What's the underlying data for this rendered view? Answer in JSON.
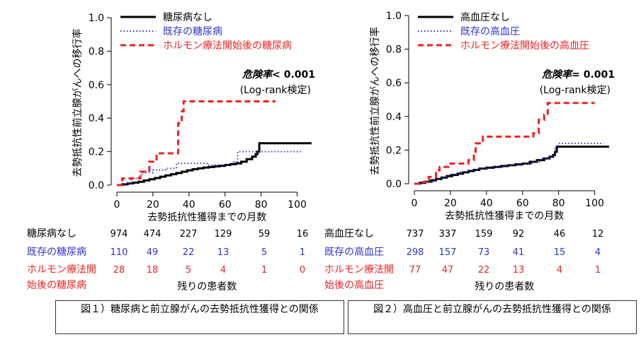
{
  "figures": [
    {
      "id": "fig1",
      "caption": "図１）糖尿病と前立腺がんの去勢抵抗性獲得との関係",
      "risk_table_title": "残りの患者数",
      "annotation": {
        "label": "危険率",
        "value": "< 0.001",
        "test": "(Log-rank検定)"
      },
      "colors": {
        "series0": "#000000",
        "series1": "#3333cc",
        "series2": "#ee2222"
      },
      "chart_data": {
        "type": "line",
        "title": "",
        "xlabel": "去勢抵抗性獲得までの月数",
        "ylabel": "去勢抵抗性前立腺がんへの移行率",
        "xlim": [
          0,
          110
        ],
        "ylim": [
          0,
          1.0
        ],
        "xticks": [
          0,
          20,
          40,
          60,
          80,
          100
        ],
        "yticks": [
          0.0,
          0.2,
          0.4,
          0.6,
          0.8,
          1.0
        ],
        "grid": false,
        "legend_position": "top-left",
        "series": [
          {
            "name": "糖尿病なし",
            "style": "solid",
            "x": [
              0,
              3,
              6,
              9,
              12,
              15,
              18,
              21,
              24,
              27,
              30,
              33,
              36,
              39,
              42,
              45,
              48,
              51,
              54,
              57,
              60,
              63,
              66,
              69,
              72,
              75,
              77,
              78,
              79,
              108
            ],
            "y": [
              0,
              0.005,
              0.01,
              0.015,
              0.02,
              0.028,
              0.035,
              0.042,
              0.05,
              0.058,
              0.065,
              0.072,
              0.08,
              0.088,
              0.095,
              0.1,
              0.105,
              0.108,
              0.112,
              0.115,
              0.12,
              0.125,
              0.13,
              0.14,
              0.155,
              0.17,
              0.185,
              0.2,
              0.25,
              0.25
            ]
          },
          {
            "name": "既存の糖尿病",
            "style": "dotted",
            "x": [
              0,
              5,
              8,
              12,
              14,
              20,
              24,
              27,
              33,
              37,
              45,
              50,
              60,
              64,
              67,
              80,
              83,
              103
            ],
            "y": [
              0,
              0.01,
              0.04,
              0.05,
              0.075,
              0.09,
              0.09,
              0.1,
              0.13,
              0.13,
              0.13,
              0.12,
              0.12,
              0.14,
              0.2,
              0.2,
              0.2,
              0.2
            ]
          },
          {
            "name": "ホルモン療法開始後の糖尿病",
            "style": "dashed",
            "x": [
              0,
              3,
              7,
              13,
              18,
              22,
              28,
              30,
              34,
              36,
              37,
              88
            ],
            "y": [
              0,
              0.04,
              0.04,
              0.08,
              0.14,
              0.19,
              0.19,
              0.19,
              0.37,
              0.44,
              0.5,
              0.5
            ]
          }
        ]
      },
      "risk_table": {
        "x": [
          0,
          20,
          40,
          60,
          80,
          100
        ],
        "rows": [
          {
            "label": "糖尿病なし",
            "values": [
              "974",
              "474",
              "227",
              "129",
              "59",
              "16"
            ]
          },
          {
            "label": "既存の糖尿病",
            "values": [
              "110",
              "49",
              "22",
              "13",
              "5",
              "1"
            ]
          },
          {
            "label_lines": [
              "ホルモン療法開",
              "始後の糖尿病"
            ],
            "values": [
              "28",
              "18",
              "5",
              "4",
              "1",
              "0"
            ]
          }
        ]
      }
    },
    {
      "id": "fig2",
      "caption": "図２）高血圧と前立腺がんの去勢抵抗性獲得との関係",
      "risk_table_title": "残りの患者数",
      "annotation": {
        "label": "危険率",
        "value": "= 0.001",
        "test": "(Log-rank検定)"
      },
      "colors": {
        "series0": "#000000",
        "series1": "#3333cc",
        "series2": "#ee2222"
      },
      "chart_data": {
        "type": "line",
        "title": "",
        "xlabel": "去勢抵抗性獲得までの月数",
        "ylabel": "去勢抵抗性前立腺がんへの移行率",
        "xlim": [
          0,
          110
        ],
        "ylim": [
          0,
          1.0
        ],
        "xticks": [
          0,
          20,
          40,
          60,
          80,
          100
        ],
        "yticks": [
          0.0,
          0.2,
          0.4,
          0.6,
          0.8,
          1.0
        ],
        "grid": false,
        "legend_position": "top-left",
        "series": [
          {
            "name": "高血圧なし",
            "style": "solid",
            "x": [
              0,
              3,
              6,
              9,
              12,
              15,
              18,
              21,
              24,
              27,
              30,
              33,
              36,
              40,
              44,
              48,
              52,
              56,
              60,
              64,
              68,
              72,
              75,
              77,
              78,
              79,
              108
            ],
            "y": [
              0,
              0.005,
              0.012,
              0.02,
              0.028,
              0.036,
              0.045,
              0.052,
              0.06,
              0.068,
              0.075,
              0.082,
              0.09,
              0.095,
              0.1,
              0.105,
              0.11,
              0.115,
              0.12,
              0.13,
              0.14,
              0.15,
              0.16,
              0.17,
              0.19,
              0.22,
              0.22
            ]
          },
          {
            "name": "既存の高血圧",
            "style": "dotted",
            "x": [
              0,
              5,
              10,
              15,
              20,
              25,
              30,
              35,
              40,
              50,
              60,
              65,
              70,
              75,
              78,
              80,
              105
            ],
            "y": [
              0,
              0.01,
              0.025,
              0.04,
              0.055,
              0.07,
              0.08,
              0.09,
              0.1,
              0.11,
              0.12,
              0.13,
              0.15,
              0.16,
              0.22,
              0.24,
              0.24
            ]
          },
          {
            "name": "ホルモン療法開始後の高血圧",
            "style": "dashed",
            "x": [
              0,
              4,
              8,
              12,
              14,
              18,
              20,
              24,
              30,
              33,
              34,
              36,
              38,
              42,
              60,
              66,
              69,
              72,
              74,
              100
            ],
            "y": [
              0,
              0.01,
              0.04,
              0.08,
              0.1,
              0.1,
              0.12,
              0.12,
              0.14,
              0.19,
              0.24,
              0.24,
              0.28,
              0.28,
              0.28,
              0.3,
              0.38,
              0.41,
              0.48,
              0.48
            ]
          }
        ]
      },
      "risk_table": {
        "x": [
          0,
          20,
          40,
          60,
          80,
          100
        ],
        "rows": [
          {
            "label": "高血圧なし",
            "values": [
              "737",
              "337",
              "159",
              "92",
              "46",
              "12"
            ]
          },
          {
            "label": "既存の高血圧",
            "values": [
              "298",
              "157",
              "73",
              "41",
              "15",
              "4"
            ]
          },
          {
            "label_lines": [
              "ホルモン療法開",
              "始後の高血圧"
            ],
            "values": [
              "77",
              "47",
              "22",
              "13",
              "4",
              "1"
            ]
          }
        ]
      }
    }
  ]
}
